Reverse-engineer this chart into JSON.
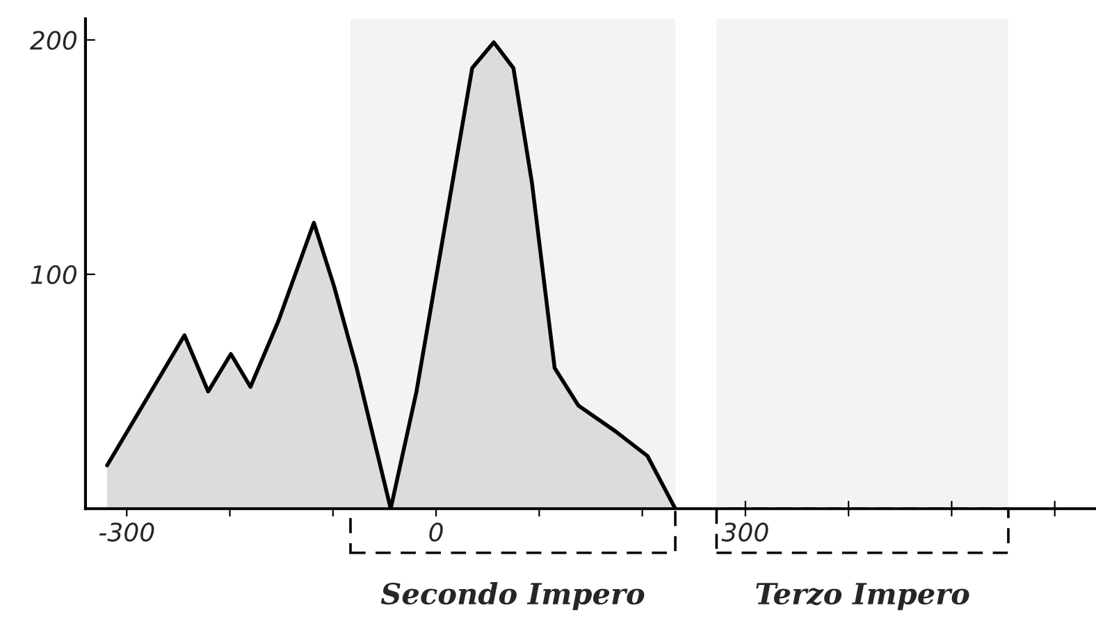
{
  "chart_data": {
    "type": "area",
    "x": [
      -319,
      -244,
      -221,
      -199,
      -180,
      -153,
      -118.5,
      -99,
      -77,
      -44,
      -19,
      8,
      35,
      56,
      75,
      93,
      115,
      138,
      174,
      205,
      232
    ],
    "series": [
      {
        "color": "#dcdcdc",
        "values": [
          18.5,
          74,
          50,
          66,
          52,
          80,
          122,
          95,
          60,
          0,
          50,
          119,
          188,
          199,
          188,
          139,
          60,
          44,
          33,
          22.5,
          0
        ]
      }
    ],
    "xlim": [
      -340,
      640
    ],
    "ylim": [
      0,
      209
    ],
    "xticks": [
      -300,
      {
        "value": -200,
        "label": null
      },
      {
        "value": -100,
        "label": null
      },
      0,
      {
        "value": 100,
        "label": null
      },
      {
        "value": 200,
        "label": null
      },
      300,
      {
        "value": 400,
        "label": null
      },
      {
        "value": 500,
        "label": null
      },
      {
        "value": 600,
        "label": null
      }
    ],
    "yticks": [
      100,
      200
    ],
    "grid": false,
    "bands": [
      {
        "axis": "x",
        "from": -83,
        "to": 232,
        "label": "Secondo Impero"
      },
      {
        "axis": "x",
        "from": 272,
        "to": 555,
        "label": "Terzo Impero"
      }
    ]
  }
}
